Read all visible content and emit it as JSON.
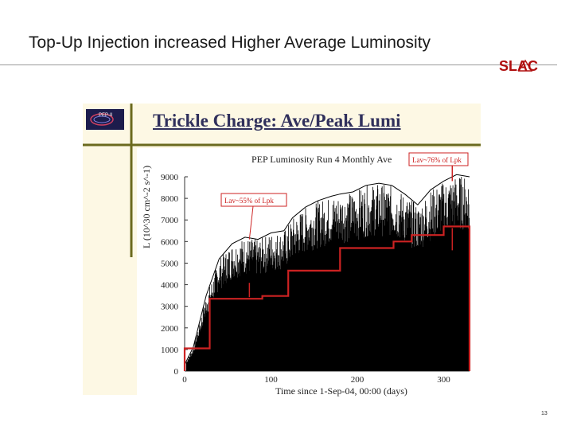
{
  "slide": {
    "title": "Top-Up Injection increased Higher Average Luminosity",
    "logo_text": "SLAC",
    "slide_number": "13",
    "colors": {
      "logo_red": "#b01010",
      "embed_bg": "#fdf8e4",
      "embed_title": "#30305c",
      "rule_olive": "#6b6a1e"
    }
  },
  "embed": {
    "title": "Trickle Charge: Ave/Peak Lumi",
    "logo_icon": "pep-ii-logo-icon",
    "logo_text": "PEP-II"
  },
  "chart_data": {
    "type": "line",
    "title": "PEP Luminosity Run 4 Monthly Ave",
    "xlabel": "Time since 1-Sep-04, 00:00 (days)",
    "ylabel": "L (10^30 cm^-2 s^-1)",
    "xlim": [
      0,
      330
    ],
    "ylim": [
      0,
      9000
    ],
    "x_ticks": [
      "0",
      "100",
      "200",
      "300"
    ],
    "y_ticks": [
      "0",
      "1000",
      "2000",
      "3000",
      "4000",
      "5000",
      "6000",
      "7000",
      "8000",
      "9000"
    ],
    "annotations": [
      {
        "text": "L_av~55% of L_pk",
        "label": "Lav~55% of Lpk"
      },
      {
        "text": "L_av~76% of L_pk",
        "label": "Lav~76% of Lpk"
      }
    ],
    "series": [
      {
        "kind": "monthly-average",
        "color": "#cc2222",
        "steps": [
          {
            "x0": 0,
            "x1": 29,
            "y": 1050
          },
          {
            "x0": 29,
            "x1": 90,
            "y": 3350
          },
          {
            "x0": 90,
            "x1": 120,
            "y": 3480
          },
          {
            "x0": 120,
            "x1": 150,
            "y": 4650
          },
          {
            "x0": 150,
            "x1": 180,
            "y": 4650
          },
          {
            "x0": 180,
            "x1": 212,
            "y": 5700
          },
          {
            "x0": 212,
            "x1": 242,
            "y": 5700
          },
          {
            "x0": 242,
            "x1": 263,
            "y": 6000
          },
          {
            "x0": 263,
            "x1": 300,
            "y": 6300
          },
          {
            "x0": 300,
            "x1": 330,
            "y": 6700
          }
        ]
      },
      {
        "kind": "peak-luminosity-envelope",
        "color": "#000000",
        "points": [
          [
            0,
            300
          ],
          [
            10,
            1100
          ],
          [
            25,
            3500
          ],
          [
            40,
            5200
          ],
          [
            55,
            5900
          ],
          [
            70,
            6200
          ],
          [
            85,
            6100
          ],
          [
            100,
            6400
          ],
          [
            115,
            6500
          ],
          [
            125,
            7100
          ],
          [
            140,
            7600
          ],
          [
            155,
            7900
          ],
          [
            170,
            8100
          ],
          [
            180,
            8200
          ],
          [
            195,
            8300
          ],
          [
            210,
            8600
          ],
          [
            225,
            8700
          ],
          [
            240,
            8600
          ],
          [
            255,
            8200
          ],
          [
            270,
            7700
          ],
          [
            285,
            8400
          ],
          [
            300,
            8800
          ],
          [
            315,
            9100
          ],
          [
            330,
            9000
          ]
        ]
      }
    ]
  }
}
